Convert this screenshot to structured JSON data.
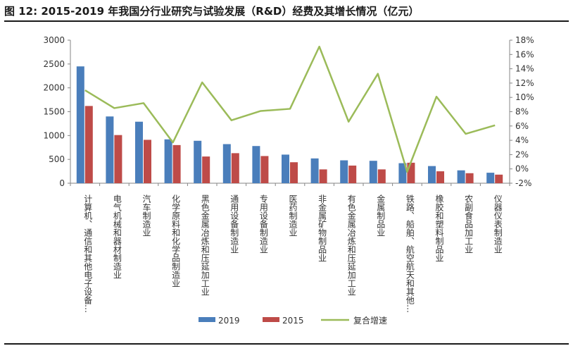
{
  "page": {
    "title": "图 12:  2015-2019 年我国分行业研究与试验发展（R&D）经费及其增长情况（亿元）"
  },
  "chart_data": {
    "type": "bar",
    "categories": [
      "计算机、通信和其他电子设备…",
      "电气机械和器材制造业",
      "汽车制造业",
      "化学原料和化学品制造业",
      "黑色金属冶炼和压延加工业",
      "通用设备制造业",
      "专用设备制造业",
      "医药制造业",
      "非金属矿物制品业",
      "有色金属冶炼和压延加工业",
      "金属制品业",
      "铁路、船舶、航空航天和其他…",
      "橡胶和塑料制品业",
      "农副食品加工业",
      "仪器仪表制造业"
    ],
    "series": [
      {
        "name": "2019",
        "values": [
          2450,
          1400,
          1290,
          920,
          890,
          820,
          780,
          600,
          520,
          480,
          470,
          420,
          360,
          270,
          220
        ],
        "color": "#4a7ebb"
      },
      {
        "name": "2015",
        "values": [
          1620,
          1010,
          910,
          800,
          560,
          630,
          570,
          440,
          290,
          370,
          290,
          430,
          250,
          210,
          180
        ],
        "color": "#be4b48"
      },
      {
        "name": "复合增速",
        "axis": "right",
        "type": "line",
        "values": [
          0.11,
          0.085,
          0.092,
          0.037,
          0.121,
          0.068,
          0.081,
          0.084,
          0.171,
          0.066,
          0.133,
          -0.004,
          0.101,
          0.049,
          0.061
        ],
        "color": "#9bbb59"
      }
    ],
    "left_axis": {
      "min": 0,
      "max": 3000,
      "ticks": [
        "0",
        "500",
        "1000",
        "1500",
        "2000",
        "2500",
        "3000"
      ]
    },
    "right_axis": {
      "min": -0.02,
      "max": 0.18,
      "ticks": [
        "-2%",
        "0%",
        "2%",
        "4%",
        "6%",
        "8%",
        "10%",
        "12%",
        "14%",
        "16%",
        "18%"
      ]
    },
    "grid": false,
    "legend_position": "bottom"
  }
}
